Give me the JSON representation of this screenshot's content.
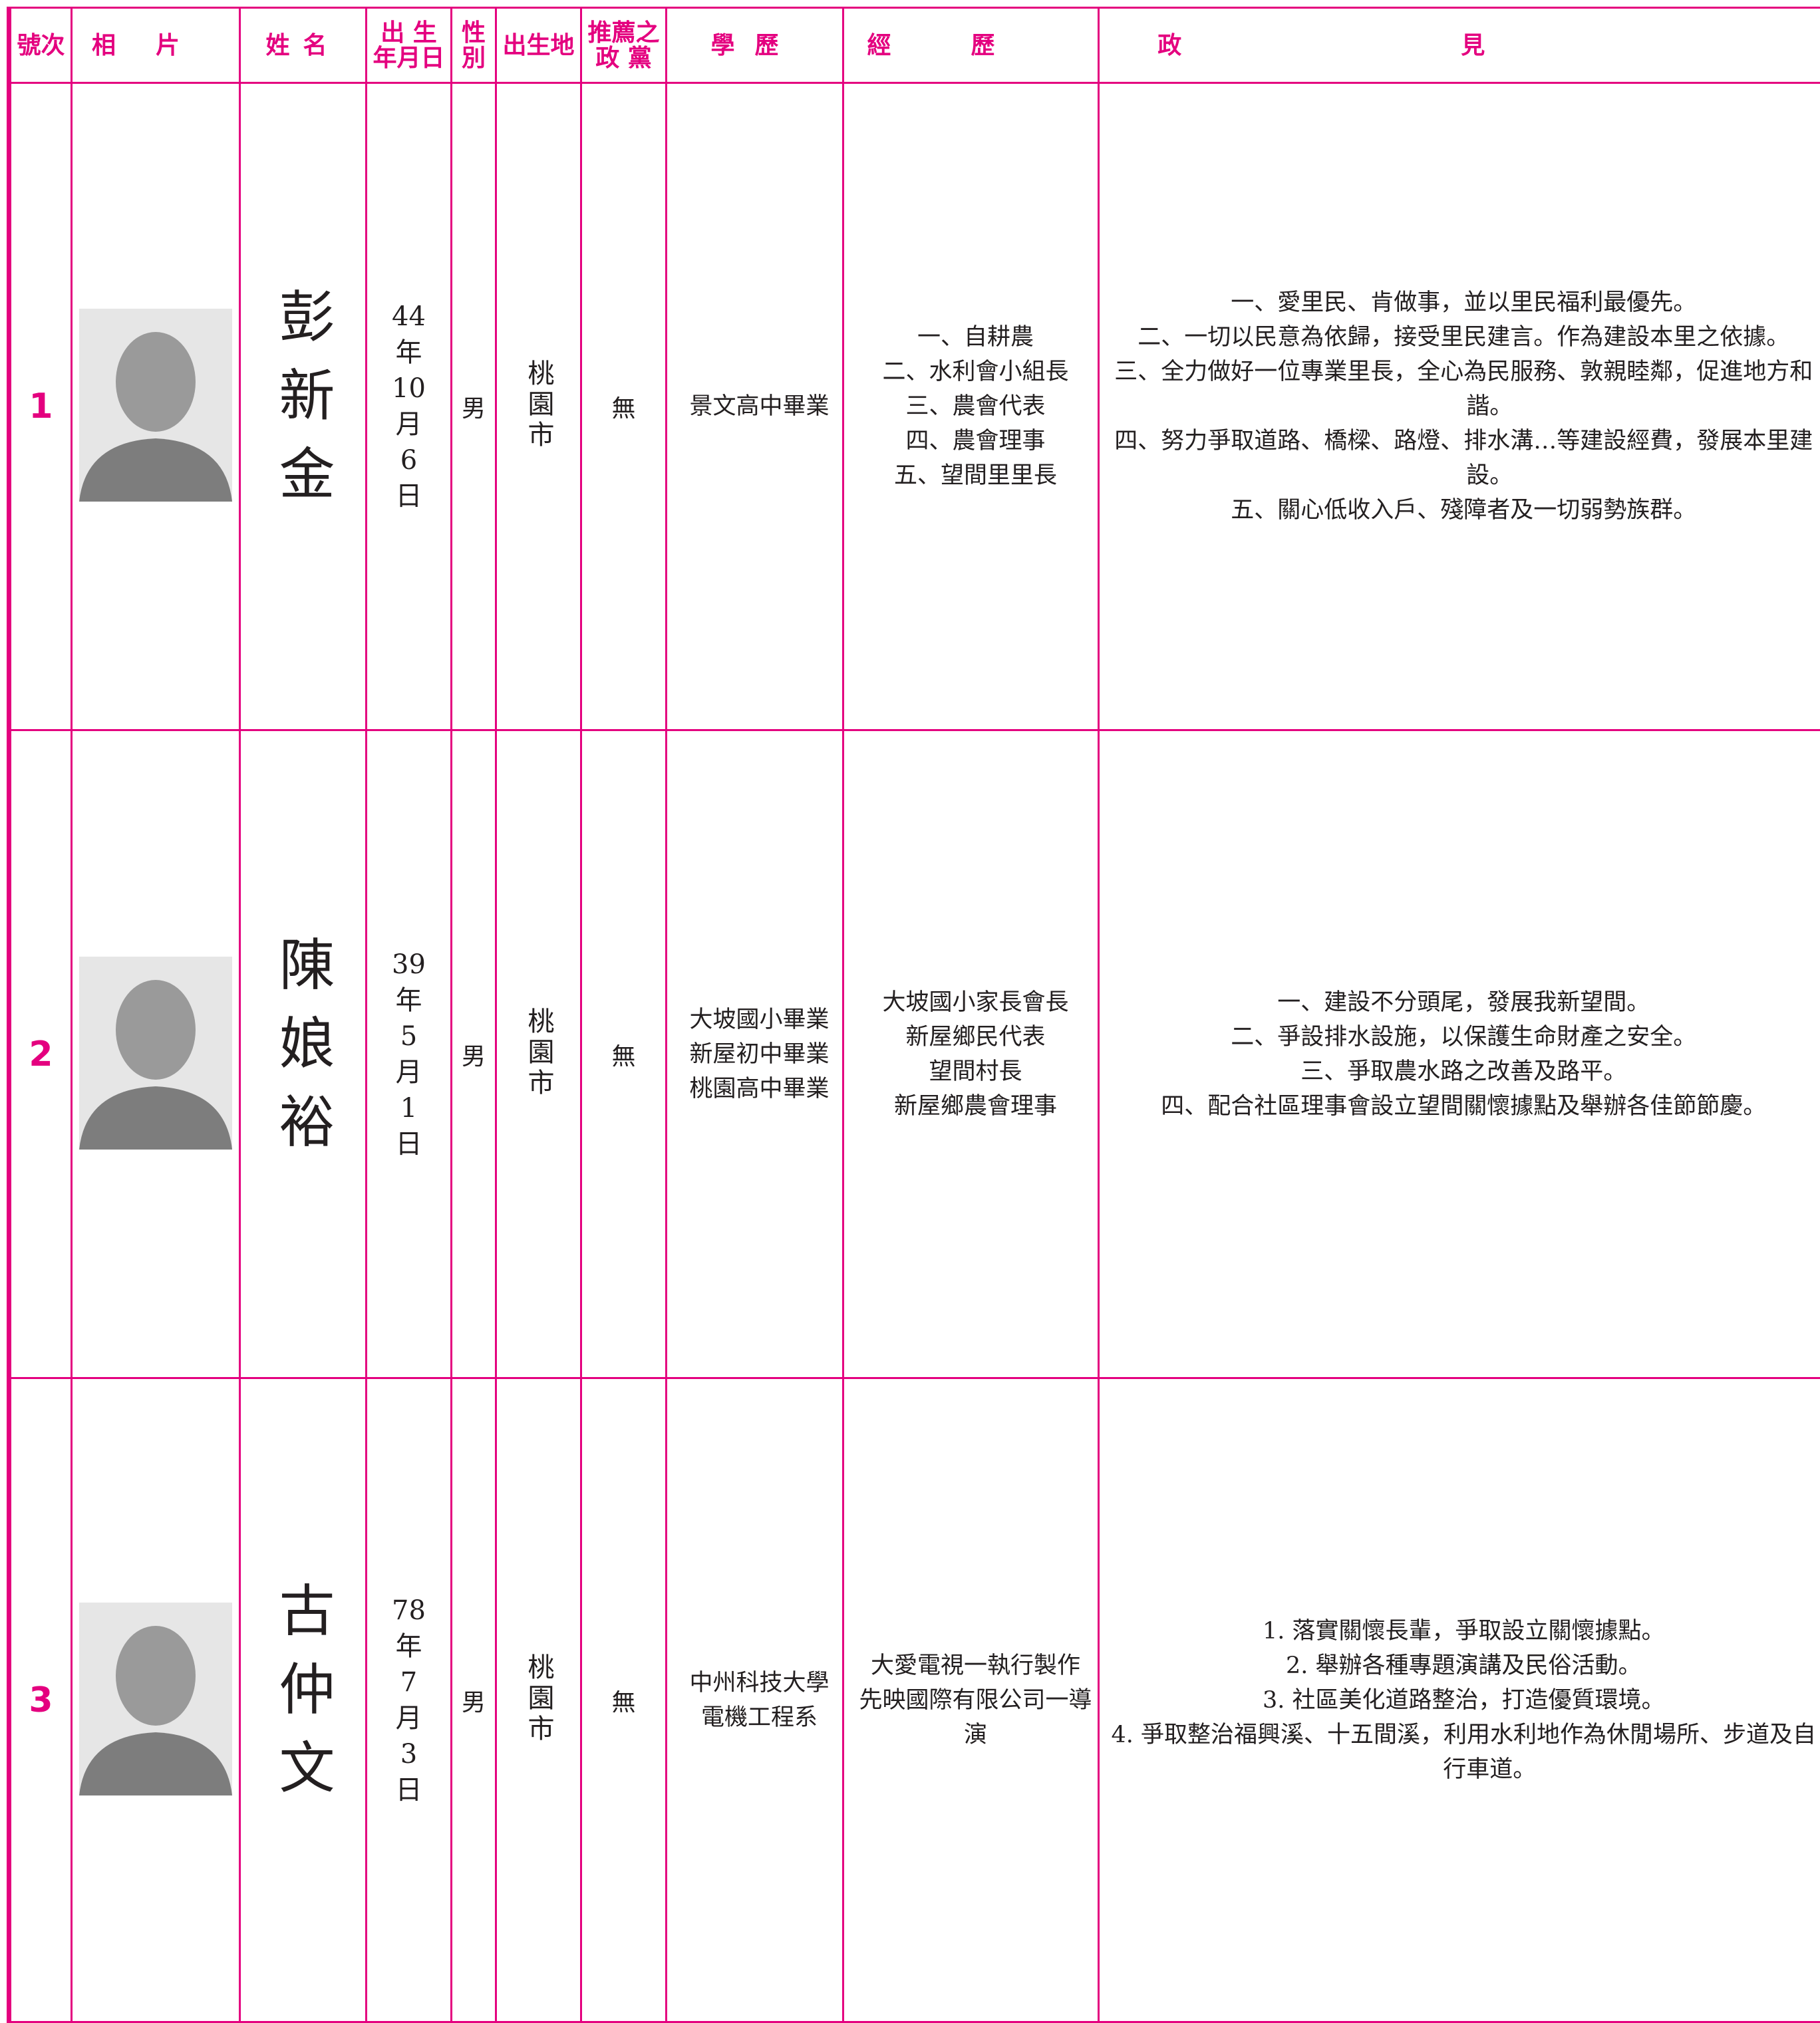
{
  "header": {
    "columns": [
      [
        "號次"
      ],
      [
        "相片"
      ],
      [
        "姓名"
      ],
      [
        "出 生",
        "年月日"
      ],
      [
        "性",
        "別"
      ],
      [
        "出生地"
      ],
      [
        "推薦之",
        "政 黨"
      ],
      [
        "學歷"
      ],
      [
        "經歷"
      ],
      [
        "政見"
      ]
    ]
  },
  "candidates": [
    {
      "number": "1",
      "name": "彭新金",
      "birth": [
        "44",
        "年",
        "10",
        "月",
        "6",
        "日"
      ],
      "gender": "男",
      "birthplace": "桃園市",
      "party": "無",
      "education": [
        "景文高中畢業"
      ],
      "experience": [
        "一、自耕農",
        "二、水利會小組長",
        "三、農會代表",
        "四、農會理事",
        "五、望間里里長"
      ],
      "platform": [
        "一、愛里民、肯做事，並以里民福利最優先。",
        "二、一切以民意為依歸，接受里民建言。作為建設本里之依據。",
        "三、全力做好一位專業里長，全心為民服務、敦親睦鄰，促進地方和諧。",
        "四、努力爭取道路、橋樑、路燈、排水溝…等建設經費，發展本里建設。",
        "五、關心低收入戶、殘障者及一切弱勢族群。"
      ]
    },
    {
      "number": "2",
      "name": "陳娘裕",
      "birth": [
        "39",
        "年",
        "5",
        "月",
        "1",
        "日"
      ],
      "gender": "男",
      "birthplace": "桃園市",
      "party": "無",
      "education": [
        "大坡國小畢業",
        "新屋初中畢業",
        "桃園高中畢業"
      ],
      "experience": [
        "大坡國小家長會長",
        "新屋鄉民代表",
        "望間村長",
        "新屋鄉農會理事"
      ],
      "platform": [
        "一、建設不分頭尾，發展我新望間。",
        "二、爭設排水設施，以保護生命財產之安全。",
        "三、爭取農水路之改善及路平。",
        "四、配合社區理事會設立望間關懷據點及舉辦各佳節節慶。"
      ]
    },
    {
      "number": "3",
      "name": "古仲文",
      "birth": [
        "78",
        "年",
        "7",
        "月",
        "3",
        "日"
      ],
      "gender": "男",
      "birthplace": "桃園市",
      "party": "無",
      "education": [
        "中州科技大學",
        "電機工程系"
      ],
      "experience": [
        "大愛電視一執行製作",
        "先映國際有限公司一導演"
      ],
      "platform": [
        "1. 落實關懷長輩，爭取設立關懷據點。",
        "2. 舉辦各種專題演講及民俗活動。",
        "3. 社區美化道路整治，打造優質環境。",
        "4. 爭取整治福興溪、十五間溪，利用水利地作為休閒場所、步道及自行車道。"
      ]
    }
  ]
}
